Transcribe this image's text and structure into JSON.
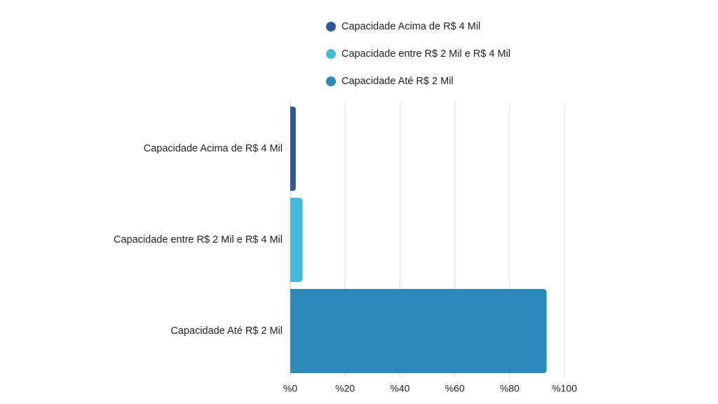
{
  "chart_data": {
    "type": "bar",
    "orientation": "horizontal",
    "categories": [
      "Capacidade Acima de R$ 4 Mil",
      "Capacidade entre R$ 2 Mil e R$ 4 Mil",
      "Capacidade Até R$ 2 Mil"
    ],
    "series": [
      {
        "name": "Capacidade Acima de R$ 4 Mil",
        "values": [
          2,
          null,
          null
        ],
        "color": "#2e5b98"
      },
      {
        "name": "Capacidade entre R$ 2 Mil e R$ 4 Mil",
        "values": [
          null,
          4.5,
          null
        ],
        "color": "#45bad8"
      },
      {
        "name": "Capacidade Até R$ 2 Mil",
        "values": [
          null,
          null,
          93.5
        ],
        "color": "#2c8bba"
      }
    ],
    "values": [
      2,
      4.5,
      93.5
    ],
    "xlim": [
      0,
      100
    ],
    "xticks": [
      0,
      20,
      40,
      60,
      80,
      100
    ],
    "xtick_labels": [
      "%0",
      "%20",
      "%40",
      "%60",
      "%80",
      "%100"
    ],
    "grid": true,
    "legend_position": "top"
  }
}
